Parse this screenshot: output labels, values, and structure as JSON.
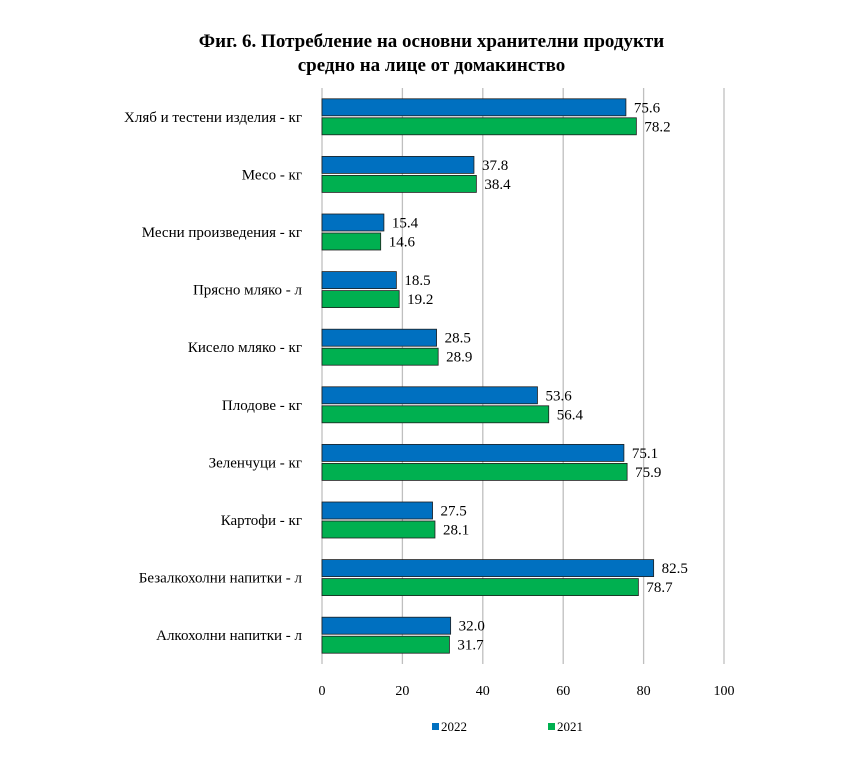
{
  "chart_data": {
    "type": "bar",
    "orientation": "horizontal",
    "title_lines": [
      "Фиг. 6. Потребление на основни хранителни продукти",
      "средно на лице от домакинство"
    ],
    "categories": [
      "Хляб и тестени изделия - кг",
      "Месо - кг",
      "Месни произведения  - кг",
      "Прясно мляко - л",
      "Кисело мляко - кг",
      "Плодове - кг",
      "Зеленчуци - кг",
      "Картофи - кг",
      "Безалкохолни напитки - л",
      "Алкохолни напитки - л"
    ],
    "series": [
      {
        "name": "2022",
        "color": "#0070C0",
        "values": [
          75.6,
          37.8,
          15.4,
          18.5,
          28.5,
          53.6,
          75.1,
          27.5,
          82.5,
          32.0
        ],
        "labels": [
          "75.6",
          "37.8",
          "15.4",
          "18.5",
          "28.5",
          "53.6",
          "75.1",
          "27.5",
          "82.5",
          "32.0"
        ]
      },
      {
        "name": "2021",
        "color": "#00B050",
        "values": [
          78.2,
          38.4,
          14.6,
          19.2,
          28.9,
          56.4,
          75.9,
          28.1,
          78.7,
          31.7
        ],
        "labels": [
          "78.2",
          "38.4",
          "14.6",
          "19.2",
          "28.9",
          "56.4",
          "75.9",
          "28.1",
          "78.7",
          "31.7"
        ]
      }
    ],
    "xlim": [
      0,
      100
    ],
    "xticks": [
      "0",
      "20",
      "40",
      "60",
      "80",
      "100"
    ],
    "grid": "vertical",
    "legend_position": "bottom"
  }
}
